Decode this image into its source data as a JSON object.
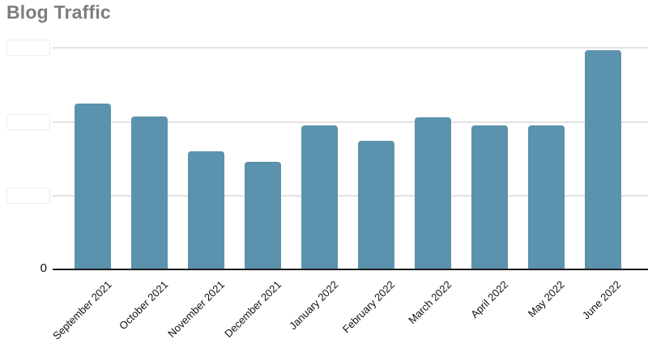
{
  "title": "Blog Traffic",
  "colors": {
    "bar": "#5b92ad",
    "title_text": "#7d7d7d",
    "gridline": "#e2e2e2",
    "axis_line": "#1c1c1c",
    "axis_label_text": "#111111"
  },
  "y_axis": {
    "zero_label": "0",
    "tick_labels_hidden": true,
    "hidden_tick_box_count": 3
  },
  "chart_data": {
    "type": "bar",
    "title": "Blog Traffic",
    "categories": [
      "September 2021",
      "October 2021",
      "November 2021",
      "December 2021",
      "January 2022",
      "February 2022",
      "March 2022",
      "April 2022",
      "May 2022",
      "June 2022"
    ],
    "values": [
      2.24,
      2.06,
      1.59,
      1.45,
      1.94,
      1.73,
      2.05,
      1.94,
      1.94,
      2.96
    ],
    "value_unit": "gridline-units (y tick labels are blanked out; only 0 is visible)",
    "xlabel": "",
    "ylabel": "",
    "ylim": [
      0,
      3
    ],
    "gridline_count": 3,
    "grid": "horizontal",
    "legend": "none",
    "x_label_rotation_deg": -45
  }
}
